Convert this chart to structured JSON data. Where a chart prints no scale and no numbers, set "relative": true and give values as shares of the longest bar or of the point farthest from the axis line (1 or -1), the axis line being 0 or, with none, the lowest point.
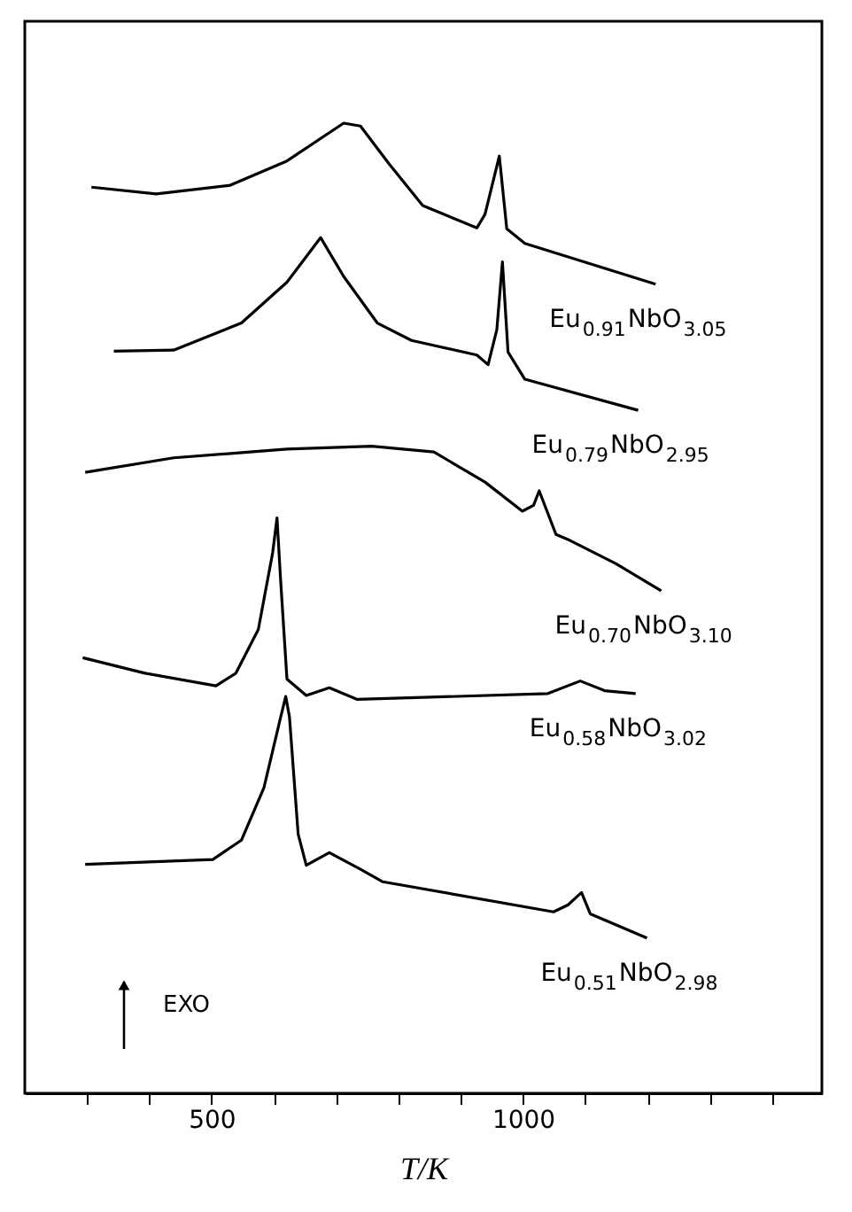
{
  "chart_data": {
    "type": "line",
    "relative": true,
    "xlabel": "T/K",
    "xlim": [
      200,
      1480
    ],
    "xticks": [
      {
        "value": 300,
        "label": null
      },
      {
        "value": 400,
        "label": null
      },
      500,
      {
        "value": 600,
        "label": null
      },
      {
        "value": 700,
        "label": null
      },
      {
        "value": 800,
        "label": null
      },
      {
        "value": 900,
        "label": null
      },
      1000,
      {
        "value": 1100,
        "label": null
      },
      {
        "value": 1200,
        "label": null
      },
      {
        "value": 1300,
        "label": null
      },
      {
        "value": 1400,
        "label": null
      }
    ],
    "grid": false,
    "legend": false,
    "line_style": "solid",
    "tick_labels": "x",
    "series": [
      {
        "name": "Eu$_{0.91}$NbO$_{3.05}$",
        "color": "#000000",
        "x": [
          307,
          411,
          530,
          621,
          712,
          739,
          785,
          839,
          926,
          939,
          962,
          974,
          1003,
          1213
        ],
        "values": [
          0.934,
          0.927,
          0.936,
          0.961,
          1.0,
          0.997,
          0.958,
          0.915,
          0.892,
          0.906,
          0.966,
          0.891,
          0.876,
          0.834
        ]
      },
      {
        "name": "Eu$_{0.79}$NbO$_{2.95}$",
        "color": "#000000",
        "x": [
          343,
          439,
          548,
          621,
          675,
          712,
          766,
          821,
          926,
          944,
          958,
          967,
          976,
          1003,
          1185
        ],
        "values": [
          0.765,
          0.766,
          0.794,
          0.836,
          0.882,
          0.842,
          0.794,
          0.776,
          0.761,
          0.751,
          0.787,
          0.857,
          0.764,
          0.736,
          0.704
        ]
      },
      {
        "name": "Eu$_{0.70}$NbO$_{3.10}$",
        "color": "#000000",
        "x": [
          297,
          439,
          621,
          757,
          857,
          939,
          999,
          1017,
          1026,
          1053,
          1075,
          1149,
          1222
        ],
        "values": [
          0.64,
          0.655,
          0.664,
          0.667,
          0.661,
          0.63,
          0.6,
          0.606,
          0.621,
          0.576,
          0.57,
          0.546,
          0.518
        ]
      },
      {
        "name": "Eu$_{0.58}$NbO$_{3.02}$",
        "color": "#000000",
        "x": [
          293,
          393,
          507,
          539,
          575,
          598,
          605,
          611,
          621,
          652,
          689,
          734,
          1040,
          1092,
          1131,
          1181
        ],
        "values": [
          0.449,
          0.433,
          0.42,
          0.433,
          0.478,
          0.557,
          0.593,
          0.527,
          0.427,
          0.41,
          0.418,
          0.406,
          0.412,
          0.425,
          0.415,
          0.412
        ]
      },
      {
        "name": "Eu$_{0.51}$NbO$_{2.98}$",
        "color": "#000000",
        "x": [
          297,
          502,
          548,
          584,
          611,
          619,
          625,
          639,
          652,
          689,
          739,
          775,
          1049,
          1072,
          1094,
          1108,
          1199
        ],
        "values": [
          0.236,
          0.241,
          0.261,
          0.315,
          0.388,
          0.409,
          0.388,
          0.267,
          0.235,
          0.248,
          0.231,
          0.218,
          0.187,
          0.194,
          0.207,
          0.185,
          0.16
        ]
      }
    ],
    "annotations": [
      "EXO"
    ]
  }
}
